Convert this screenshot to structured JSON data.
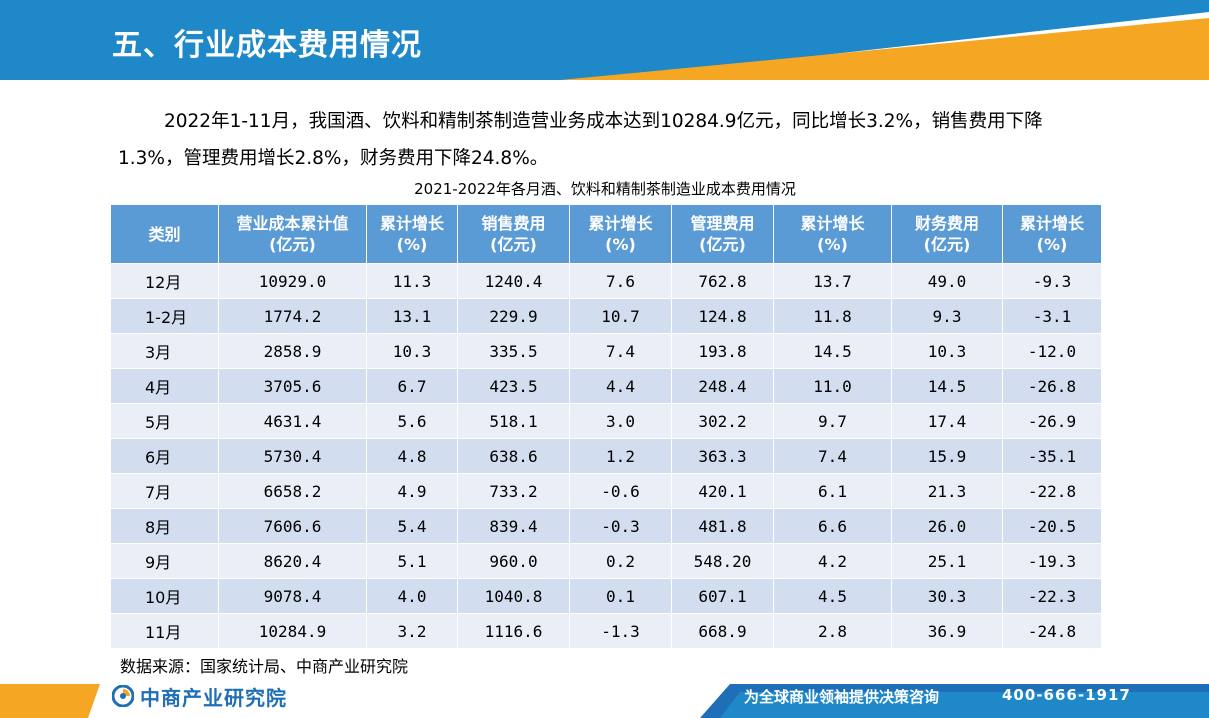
{
  "header": {
    "title": "五、行业成本费用情况"
  },
  "intro": {
    "text": "2022年1-11月，我国酒、饮料和精制茶制造营业务成本达到10284.9亿元，同比增长3.2%，销售费用下降1.3%，管理费用增长2.8%，财务费用下降24.8%。"
  },
  "table": {
    "caption": "2021-2022年各月酒、饮料和精制茶制造业成本费用情况",
    "headers": [
      {
        "line1": "类别",
        "line2": ""
      },
      {
        "line1": "营业成本累计值",
        "line2": "(亿元)"
      },
      {
        "line1": "累计增长",
        "line2": "(%)"
      },
      {
        "line1": "销售费用",
        "line2": "(亿元)"
      },
      {
        "line1": "累计增长",
        "line2": "(%)"
      },
      {
        "line1": "管理费用",
        "line2": "(亿元)"
      },
      {
        "line1": "累计增长",
        "line2": "(%)"
      },
      {
        "line1": "财务费用",
        "line2": "(亿元)"
      },
      {
        "line1": "累计增长",
        "line2": "(%)"
      }
    ],
    "rows": [
      [
        "12月",
        "10929.0",
        "11.3",
        "1240.4",
        "7.6",
        "762.8",
        "13.7",
        "49.0",
        "-9.3"
      ],
      [
        "1-2月",
        "1774.2",
        "13.1",
        "229.9",
        "10.7",
        "124.8",
        "11.8",
        "9.3",
        "-3.1"
      ],
      [
        "3月",
        "2858.9",
        "10.3",
        "335.5",
        "7.4",
        "193.8",
        "14.5",
        "10.3",
        "-12.0"
      ],
      [
        "4月",
        "3705.6",
        "6.7",
        "423.5",
        "4.4",
        "248.4",
        "11.0",
        "14.5",
        "-26.8"
      ],
      [
        "5月",
        "4631.4",
        "5.6",
        "518.1",
        "3.0",
        "302.2",
        "9.7",
        "17.4",
        "-26.9"
      ],
      [
        "6月",
        "5730.4",
        "4.8",
        "638.6",
        "1.2",
        "363.3",
        "7.4",
        "15.9",
        "-35.1"
      ],
      [
        "7月",
        "6658.2",
        "4.9",
        "733.2",
        "-0.6",
        "420.1",
        "6.1",
        "21.3",
        "-22.8"
      ],
      [
        "8月",
        "7606.6",
        "5.4",
        "839.4",
        "-0.3",
        "481.8",
        "6.6",
        "26.0",
        "-20.5"
      ],
      [
        "9月",
        "8620.4",
        "5.1",
        "960.0",
        "0.2",
        "548.20",
        "4.2",
        "25.1",
        "-19.3"
      ],
      [
        "10月",
        "9078.4",
        "4.0",
        "1040.8",
        "0.1",
        "607.1",
        "4.5",
        "30.3",
        "-22.3"
      ],
      [
        "11月",
        "10284.9",
        "3.2",
        "1116.6",
        "-1.3",
        "668.9",
        "2.8",
        "36.9",
        "-24.8"
      ]
    ]
  },
  "source": {
    "text": "数据来源：国家统计局、中商产业研究院"
  },
  "footer": {
    "logo_text": "中商产业研究院",
    "slogan": "为全球商业领袖提供决策咨询",
    "phone": "400-666-1917"
  },
  "colors": {
    "header_blue": "#1e88c8",
    "accent_orange": "#f5a623",
    "table_header": "#5b9bd5",
    "row_dark": "#d2deef",
    "row_light": "#eaeff7"
  }
}
